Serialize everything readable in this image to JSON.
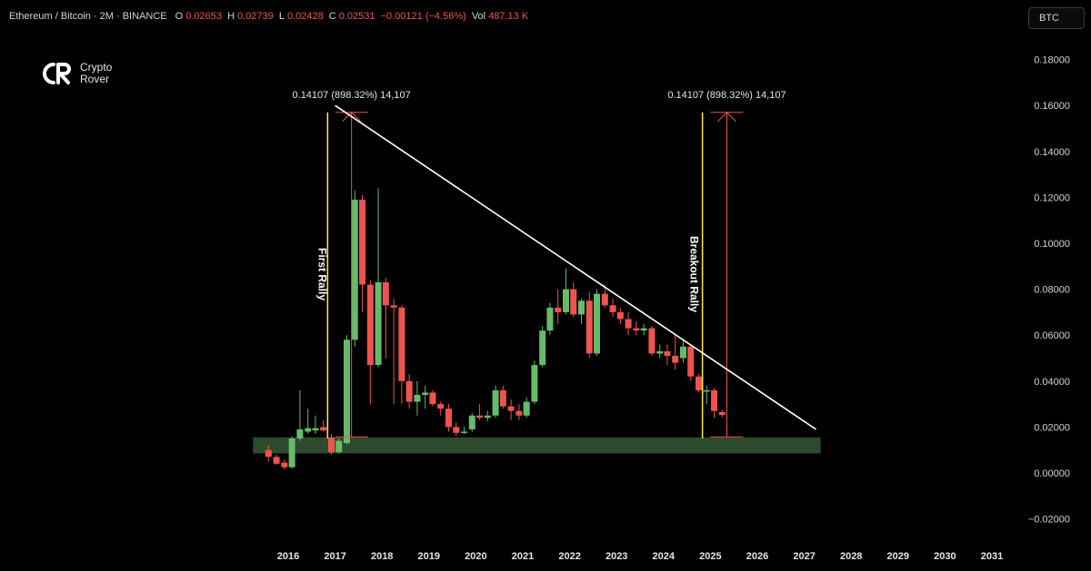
{
  "header": {
    "symbol": "Ethereum / Bitcoin · 2M · BINANCE",
    "open_label": "O",
    "open": "0.02653",
    "high_label": "H",
    "high": "0.02739",
    "low_label": "L",
    "low": "0.02428",
    "close_label": "C",
    "close": "0.02531",
    "change": "−0.00121 (−4.56%)",
    "vol_label": "Vol",
    "vol": "487.13 K"
  },
  "currency_button": "BTC",
  "logo": {
    "line1": "Crypto",
    "line2": "Rover"
  },
  "colors": {
    "bull": "#66bb6a",
    "bear": "#ef5350",
    "trendline": "#ffffff",
    "rally_line": "#ffeb3b",
    "measure": "#ef5350",
    "support_zone": "#2e4a2c"
  },
  "chart_data": {
    "type": "candlestick",
    "pair": "ETH/BTC",
    "timeframe": "2M",
    "ylim": [
      -0.025,
      0.19
    ],
    "y_ticks": [
      "0.18000",
      "0.16000",
      "0.14000",
      "0.12000",
      "0.10000",
      "0.08000",
      "0.06000",
      "0.04000",
      "0.02000",
      "0.00000",
      "−0.02000"
    ],
    "x_ticks": [
      "2016",
      "2017",
      "2018",
      "2019",
      "2020",
      "2021",
      "2022",
      "2023",
      "2024",
      "2025",
      "2026",
      "2027",
      "2028",
      "2029",
      "2030",
      "2031"
    ],
    "candles": [
      {
        "t": 2015.58,
        "o": 0.01,
        "h": 0.012,
        "l": 0.005,
        "c": 0.007
      },
      {
        "t": 2015.75,
        "o": 0.007,
        "h": 0.008,
        "l": 0.0035,
        "c": 0.004
      },
      {
        "t": 2015.92,
        "o": 0.0045,
        "h": 0.006,
        "l": 0.0015,
        "c": 0.0025
      },
      {
        "t": 2016.08,
        "o": 0.0025,
        "h": 0.016,
        "l": 0.002,
        "c": 0.015
      },
      {
        "t": 2016.25,
        "o": 0.015,
        "h": 0.036,
        "l": 0.014,
        "c": 0.019
      },
      {
        "t": 2016.42,
        "o": 0.018,
        "h": 0.028,
        "l": 0.017,
        "c": 0.0195
      },
      {
        "t": 2016.58,
        "o": 0.0185,
        "h": 0.025,
        "l": 0.017,
        "c": 0.0195
      },
      {
        "t": 2016.75,
        "o": 0.02,
        "h": 0.023,
        "l": 0.018,
        "c": 0.0185
      },
      {
        "t": 2016.92,
        "o": 0.0155,
        "h": 0.017,
        "l": 0.008,
        "c": 0.009
      },
      {
        "t": 2017.08,
        "o": 0.009,
        "h": 0.015,
        "l": 0.0085,
        "c": 0.014
      },
      {
        "t": 2017.25,
        "o": 0.013,
        "h": 0.06,
        "l": 0.0125,
        "c": 0.058
      },
      {
        "t": 2017.42,
        "o": 0.058,
        "h": 0.123,
        "l": 0.055,
        "c": 0.119
      },
      {
        "t": 2017.58,
        "o": 0.119,
        "h": 0.121,
        "l": 0.07,
        "c": 0.082
      },
      {
        "t": 2017.75,
        "o": 0.082,
        "h": 0.084,
        "l": 0.03,
        "c": 0.047
      },
      {
        "t": 2017.92,
        "o": 0.047,
        "h": 0.124,
        "l": 0.046,
        "c": 0.083
      },
      {
        "t": 2018.08,
        "o": 0.083,
        "h": 0.085,
        "l": 0.05,
        "c": 0.073
      },
      {
        "t": 2018.25,
        "o": 0.073,
        "h": 0.076,
        "l": 0.03,
        "c": 0.072
      },
      {
        "t": 2018.42,
        "o": 0.072,
        "h": 0.073,
        "l": 0.03,
        "c": 0.04
      },
      {
        "t": 2018.58,
        "o": 0.04,
        "h": 0.043,
        "l": 0.028,
        "c": 0.031
      },
      {
        "t": 2018.75,
        "o": 0.031,
        "h": 0.04,
        "l": 0.025,
        "c": 0.034
      },
      {
        "t": 2018.92,
        "o": 0.034,
        "h": 0.038,
        "l": 0.028,
        "c": 0.035
      },
      {
        "t": 2019.08,
        "o": 0.035,
        "h": 0.036,
        "l": 0.029,
        "c": 0.03
      },
      {
        "t": 2019.25,
        "o": 0.03,
        "h": 0.031,
        "l": 0.025,
        "c": 0.028
      },
      {
        "t": 2019.42,
        "o": 0.028,
        "h": 0.03,
        "l": 0.018,
        "c": 0.02
      },
      {
        "t": 2019.58,
        "o": 0.02,
        "h": 0.022,
        "l": 0.016,
        "c": 0.0175
      },
      {
        "t": 2019.75,
        "o": 0.0175,
        "h": 0.02,
        "l": 0.017,
        "c": 0.018
      },
      {
        "t": 2019.92,
        "o": 0.019,
        "h": 0.026,
        "l": 0.018,
        "c": 0.025
      },
      {
        "t": 2020.08,
        "o": 0.025,
        "h": 0.03,
        "l": 0.023,
        "c": 0.024
      },
      {
        "t": 2020.25,
        "o": 0.024,
        "h": 0.027,
        "l": 0.0225,
        "c": 0.025
      },
      {
        "t": 2020.42,
        "o": 0.025,
        "h": 0.038,
        "l": 0.024,
        "c": 0.036
      },
      {
        "t": 2020.58,
        "o": 0.036,
        "h": 0.038,
        "l": 0.028,
        "c": 0.029
      },
      {
        "t": 2020.75,
        "o": 0.029,
        "h": 0.032,
        "l": 0.023,
        "c": 0.027
      },
      {
        "t": 2020.92,
        "o": 0.027,
        "h": 0.03,
        "l": 0.023,
        "c": 0.025
      },
      {
        "t": 2021.08,
        "o": 0.025,
        "h": 0.033,
        "l": 0.024,
        "c": 0.031
      },
      {
        "t": 2021.25,
        "o": 0.031,
        "h": 0.049,
        "l": 0.03,
        "c": 0.047
      },
      {
        "t": 2021.42,
        "o": 0.047,
        "h": 0.064,
        "l": 0.046,
        "c": 0.062
      },
      {
        "t": 2021.58,
        "o": 0.062,
        "h": 0.074,
        "l": 0.06,
        "c": 0.072
      },
      {
        "t": 2021.75,
        "o": 0.072,
        "h": 0.08,
        "l": 0.065,
        "c": 0.07
      },
      {
        "t": 2021.92,
        "o": 0.07,
        "h": 0.089,
        "l": 0.069,
        "c": 0.08
      },
      {
        "t": 2022.08,
        "o": 0.08,
        "h": 0.083,
        "l": 0.068,
        "c": 0.069
      },
      {
        "t": 2022.25,
        "o": 0.069,
        "h": 0.076,
        "l": 0.065,
        "c": 0.075
      },
      {
        "t": 2022.42,
        "o": 0.075,
        "h": 0.079,
        "l": 0.05,
        "c": 0.052
      },
      {
        "t": 2022.58,
        "o": 0.052,
        "h": 0.08,
        "l": 0.051,
        "c": 0.078
      },
      {
        "t": 2022.75,
        "o": 0.078,
        "h": 0.082,
        "l": 0.072,
        "c": 0.073
      },
      {
        "t": 2022.92,
        "o": 0.073,
        "h": 0.076,
        "l": 0.068,
        "c": 0.07
      },
      {
        "t": 2023.08,
        "o": 0.07,
        "h": 0.072,
        "l": 0.065,
        "c": 0.067
      },
      {
        "t": 2023.25,
        "o": 0.067,
        "h": 0.07,
        "l": 0.06,
        "c": 0.063
      },
      {
        "t": 2023.42,
        "o": 0.063,
        "h": 0.066,
        "l": 0.06,
        "c": 0.062
      },
      {
        "t": 2023.58,
        "o": 0.062,
        "h": 0.065,
        "l": 0.06,
        "c": 0.063
      },
      {
        "t": 2023.75,
        "o": 0.063,
        "h": 0.064,
        "l": 0.051,
        "c": 0.052
      },
      {
        "t": 2023.92,
        "o": 0.052,
        "h": 0.056,
        "l": 0.05,
        "c": 0.053
      },
      {
        "t": 2024.08,
        "o": 0.053,
        "h": 0.056,
        "l": 0.047,
        "c": 0.051
      },
      {
        "t": 2024.25,
        "o": 0.051,
        "h": 0.06,
        "l": 0.045,
        "c": 0.048
      },
      {
        "t": 2024.42,
        "o": 0.05,
        "h": 0.058,
        "l": 0.048,
        "c": 0.055
      },
      {
        "t": 2024.58,
        "o": 0.055,
        "h": 0.056,
        "l": 0.04,
        "c": 0.042
      },
      {
        "t": 2024.75,
        "o": 0.042,
        "h": 0.043,
        "l": 0.035,
        "c": 0.036
      },
      {
        "t": 2024.92,
        "o": 0.036,
        "h": 0.038,
        "l": 0.03,
        "c": 0.036
      },
      {
        "t": 2025.08,
        "o": 0.036,
        "h": 0.037,
        "l": 0.024,
        "c": 0.027
      },
      {
        "t": 2025.25,
        "o": 0.0265,
        "h": 0.0274,
        "l": 0.0243,
        "c": 0.0253
      }
    ],
    "support_zone": {
      "y_low": 0.0085,
      "y_high": 0.0155,
      "x_start": 2015.25,
      "x_end": 2027.35
    },
    "trendline": {
      "x1": 2017.0,
      "y1": 0.16,
      "x2": 2027.25,
      "y2": 0.019
    },
    "rally_lines": [
      {
        "label": "First Rally",
        "x": 2016.84,
        "y_low": 0.015,
        "y_high": 0.157
      },
      {
        "label": "Breakout Rally",
        "x": 2024.83,
        "y_low": 0.015,
        "y_high": 0.157
      }
    ],
    "measures": [
      {
        "label": "0.14107 (898.32%) 14,107",
        "x": 2017.35,
        "y_low": 0.0157,
        "y_high": 0.157
      },
      {
        "label": "0.14107 (898.32%) 14,107",
        "x": 2025.35,
        "y_low": 0.0157,
        "y_high": 0.157
      }
    ]
  }
}
